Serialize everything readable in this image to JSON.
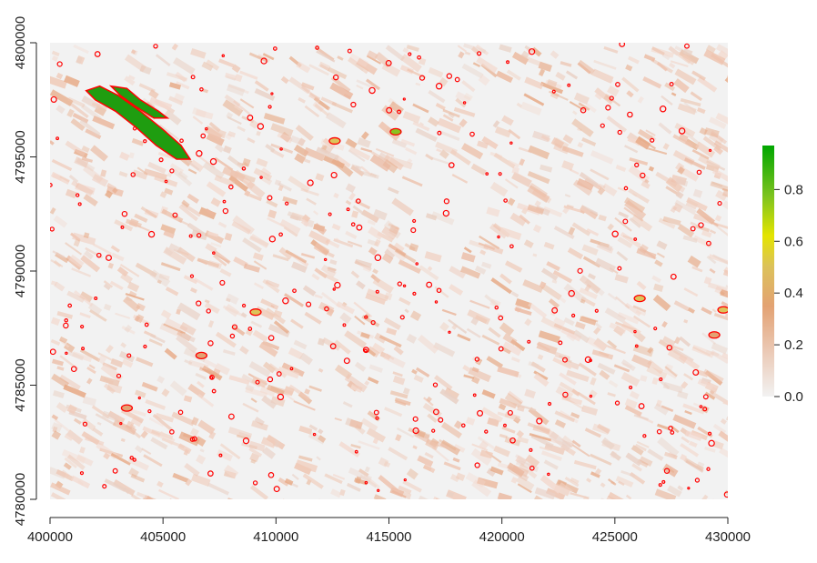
{
  "chart_data": {
    "type": "heatmap",
    "title": "",
    "xlabel": "",
    "ylabel": "",
    "xlim": [
      400000,
      430000
    ],
    "ylim": [
      4780000,
      4800000
    ],
    "x_ticks": [
      400000,
      405000,
      410000,
      415000,
      420000,
      425000,
      430000
    ],
    "y_ticks": [
      4780000,
      4785000,
      4790000,
      4795000,
      4800000
    ],
    "legend": {
      "position": "right",
      "range": [
        0.0,
        0.97
      ],
      "ticks": [
        0.0,
        0.2,
        0.4,
        0.6,
        0.8
      ],
      "colors": [
        "#f2f2f2",
        "#ebc9b5",
        "#e3a273",
        "#d9b440",
        "#e4e400",
        "#7cc31f",
        "#00a600"
      ]
    },
    "background_value": 0.0,
    "boundary_color": "#ff0000",
    "features": [
      {
        "name": "large-green-patch-north",
        "value": 0.95,
        "x": [
          401600,
          402200,
          403000,
          404000,
          405000,
          405800,
          406200,
          405600,
          404700,
          403800,
          402900,
          402000
        ],
        "y": [
          4797900,
          4798100,
          4797700,
          4797000,
          4796200,
          4795500,
          4794900,
          4794900,
          4795500,
          4796300,
          4797000,
          4797500
        ]
      },
      {
        "name": "large-green-patch-south",
        "value": 0.95,
        "x": [
          402700,
          403400,
          404000,
          404800,
          405200,
          404600,
          403800,
          403100
        ],
        "y": [
          4798100,
          4798000,
          4797500,
          4797000,
          4796700,
          4796700,
          4797200,
          4797700
        ]
      }
    ],
    "hotspots": [
      {
        "x": 415300,
        "y": 4796100,
        "value": 0.7
      },
      {
        "x": 426100,
        "y": 4788800,
        "value": 0.55
      },
      {
        "x": 429400,
        "y": 4787200,
        "value": 0.3
      },
      {
        "x": 429800,
        "y": 4788300,
        "value": 0.5
      },
      {
        "x": 412600,
        "y": 4795700,
        "value": 0.45
      },
      {
        "x": 403400,
        "y": 4784000,
        "value": 0.3
      },
      {
        "x": 409100,
        "y": 4788200,
        "value": 0.6
      },
      {
        "x": 406700,
        "y": 4786300,
        "value": 0.25
      }
    ]
  }
}
